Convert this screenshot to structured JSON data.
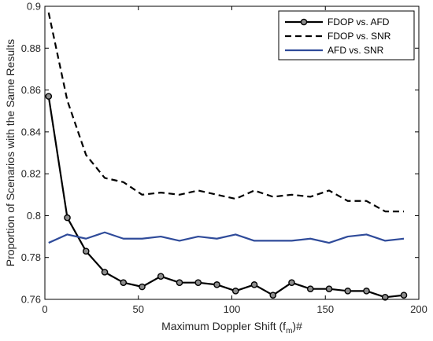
{
  "chart_data": {
    "type": "line",
    "title": "",
    "xlabel": "Maximum Doppler Shift (f",
    "xlabel_sub": "m",
    "xlabel_suffix": ")#",
    "ylabel": "Proportion of Scenarios with the Same Results",
    "xlim": [
      0,
      200
    ],
    "ylim": [
      0.76,
      0.9
    ],
    "xticks": [
      0,
      50,
      100,
      150,
      200
    ],
    "yticks": [
      0.76,
      0.78,
      0.8,
      0.82,
      0.84,
      0.86,
      0.88,
      0.9
    ],
    "ytick_labels": [
      "0.76",
      "0.78",
      "0.8",
      "0.82",
      "0.84",
      "0.86",
      "0.88",
      "0.9"
    ],
    "grid": false,
    "legend_position": "top-right",
    "x": [
      2,
      12,
      22,
      32,
      42,
      52,
      62,
      72,
      82,
      92,
      102,
      112,
      122,
      132,
      142,
      152,
      162,
      172,
      182,
      192
    ],
    "series": [
      {
        "name": "FDOP vs. AFD",
        "style": "solid-markers",
        "color": "#000000",
        "values": [
          0.857,
          0.799,
          0.783,
          0.773,
          0.768,
          0.766,
          0.771,
          0.768,
          0.768,
          0.767,
          0.764,
          0.767,
          0.762,
          0.768,
          0.765,
          0.765,
          0.764,
          0.764,
          0.761,
          0.762
        ]
      },
      {
        "name": "FDOP vs. SNR",
        "style": "dashed",
        "color": "#000000",
        "values": [
          0.897,
          0.855,
          0.829,
          0.818,
          0.816,
          0.81,
          0.811,
          0.81,
          0.812,
          0.81,
          0.808,
          0.812,
          0.809,
          0.81,
          0.809,
          0.812,
          0.807,
          0.807,
          0.802,
          0.802
        ]
      },
      {
        "name": "AFD vs. SNR",
        "style": "solid",
        "color": "#2f4b9a",
        "values": [
          0.787,
          0.791,
          0.789,
          0.792,
          0.789,
          0.789,
          0.79,
          0.788,
          0.79,
          0.789,
          0.791,
          0.788,
          0.788,
          0.788,
          0.789,
          0.787,
          0.79,
          0.791,
          0.788,
          0.789
        ]
      }
    ]
  }
}
